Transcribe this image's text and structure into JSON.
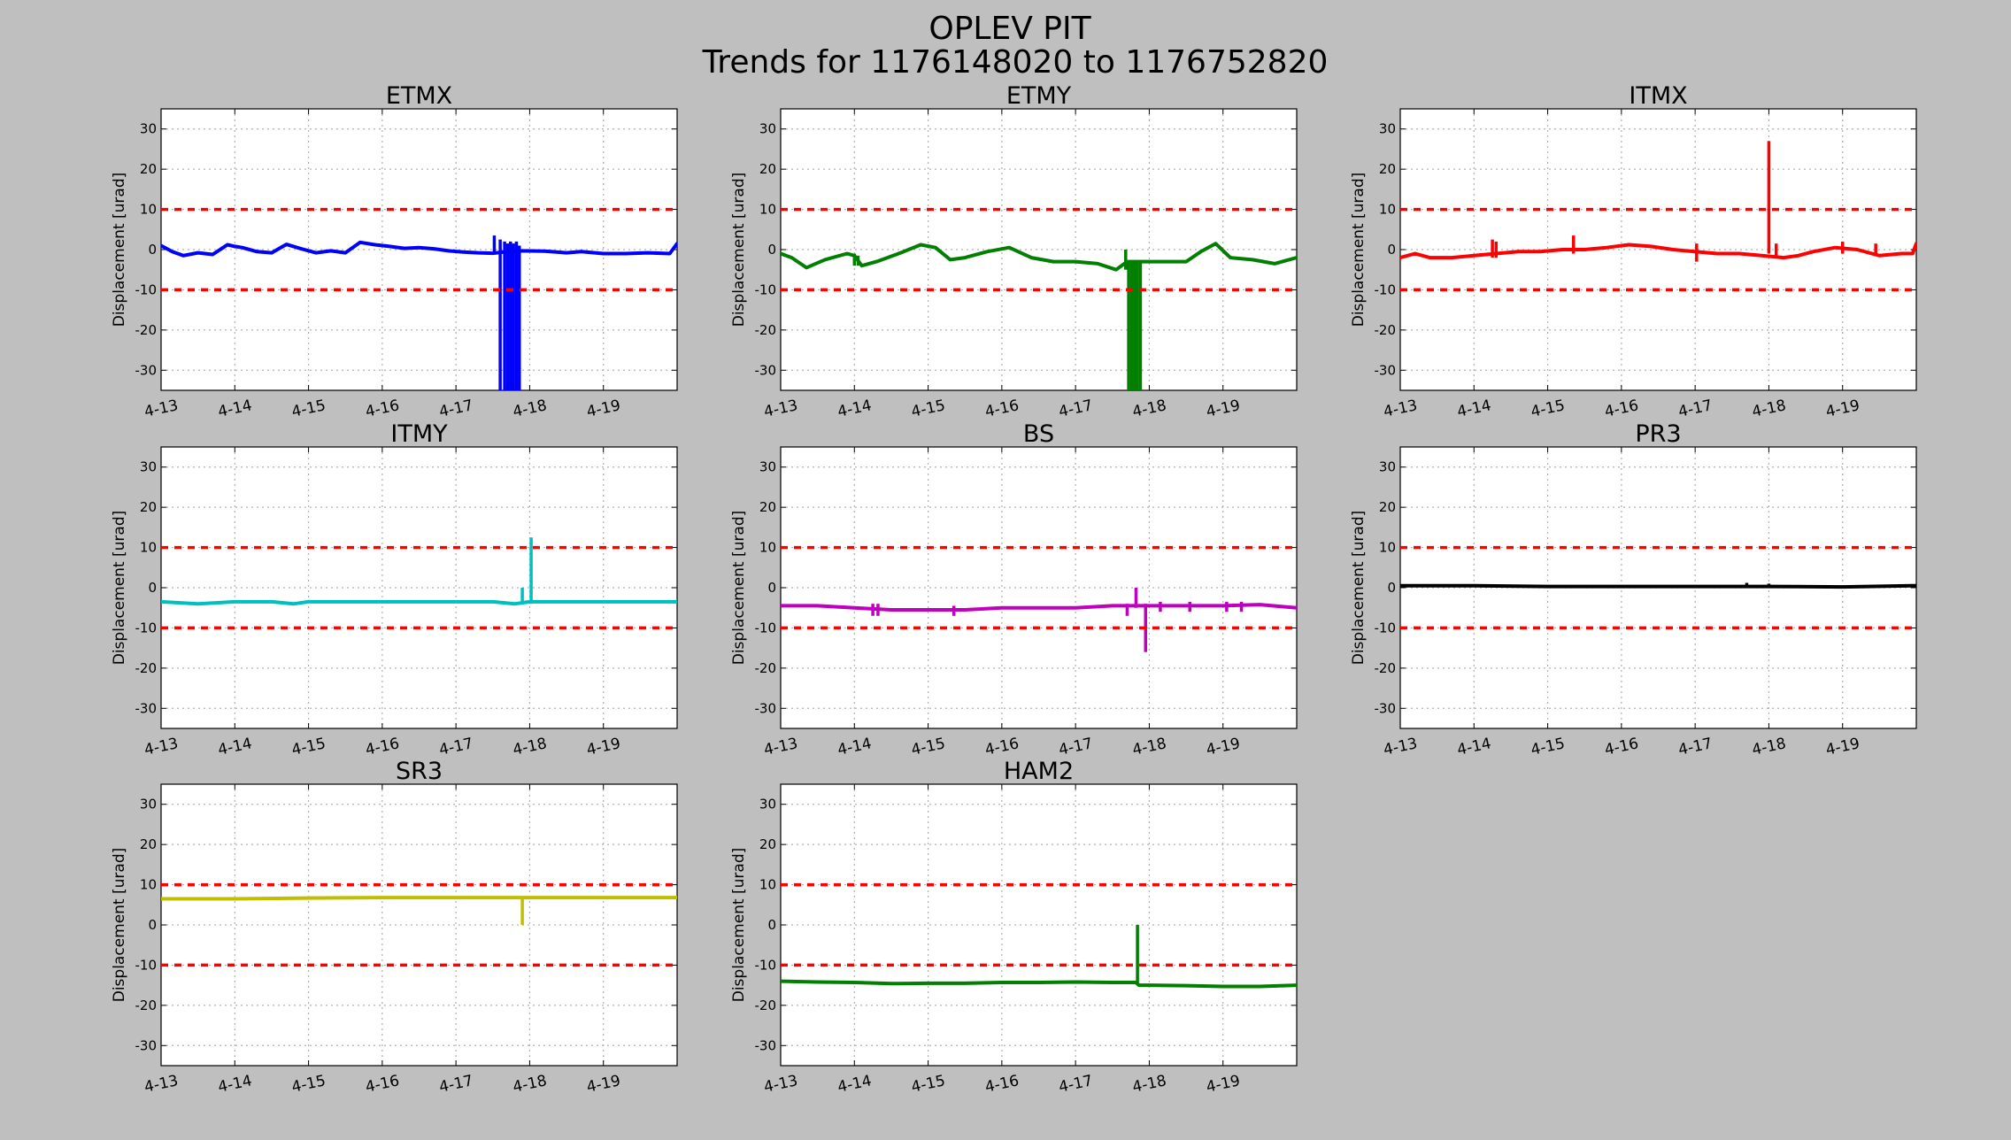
{
  "figure": {
    "title_line1": "OPLEV PIT",
    "title_line2": "Trends for 1176148020 to 1176752820"
  },
  "chart_data": [
    {
      "type": "line",
      "title": "ETMX",
      "ylabel": "Displacement [urad]",
      "xticks": [
        "4-13",
        "4-14",
        "4-15",
        "4-16",
        "4-17",
        "4-18",
        "4-19"
      ],
      "xlim": [
        0,
        7
      ],
      "ylim": [
        -35,
        35
      ],
      "yticks": [
        30,
        20,
        10,
        0,
        -10,
        -20,
        -30
      ],
      "grid": true,
      "thresholds": [
        10,
        -10
      ],
      "threshold_color": "#ff0000",
      "series": [
        {
          "color": "#0000ff",
          "x": [
            0,
            0.15,
            0.3,
            0.5,
            0.7,
            0.9,
            1.0,
            1.1,
            1.3,
            1.5,
            1.7,
            1.9,
            2.1,
            2.3,
            2.5,
            2.7,
            2.9,
            3.1,
            3.3,
            3.5,
            3.7,
            3.9,
            4.1,
            4.3,
            4.5,
            4.7,
            4.9,
            5.2,
            5.5,
            5.7,
            6.0,
            6.3,
            6.6,
            6.9,
            7.0
          ],
          "y": [
            1,
            -0.5,
            -1.5,
            -0.8,
            -1.2,
            1.2,
            0.8,
            0.5,
            -0.5,
            -0.8,
            1.3,
            0.2,
            -0.8,
            -0.3,
            -0.8,
            1.8,
            1.2,
            0.8,
            0.3,
            0.5,
            0.2,
            -0.3,
            -0.6,
            -0.8,
            -0.9,
            -0.5,
            -0.3,
            -0.4,
            -0.8,
            -0.5,
            -1.0,
            -1.0,
            -0.8,
            -1.0,
            1.5
          ]
        }
      ],
      "spikes": [
        {
          "x": 4.52,
          "ymin": -1,
          "ymax": 3.5
        },
        {
          "x": 4.6,
          "ymin": -35,
          "ymax": 2.5
        },
        {
          "x": 4.66,
          "ymin": -35,
          "ymax": 2
        },
        {
          "x": 4.7,
          "ymin": -35,
          "ymax": 1.5
        },
        {
          "x": 4.74,
          "ymin": -35,
          "ymax": 2
        },
        {
          "x": 4.78,
          "ymin": -35,
          "ymax": 1.5
        },
        {
          "x": 4.82,
          "ymin": -35,
          "ymax": 2
        },
        {
          "x": 4.86,
          "ymin": -35,
          "ymax": 1
        }
      ]
    },
    {
      "type": "line",
      "title": "ETMY",
      "ylabel": "Displacement [urad]",
      "xticks": [
        "4-13",
        "4-14",
        "4-15",
        "4-16",
        "4-17",
        "4-18",
        "4-19"
      ],
      "xlim": [
        0,
        7
      ],
      "ylim": [
        -35,
        35
      ],
      "yticks": [
        30,
        20,
        10,
        0,
        -10,
        -20,
        -30
      ],
      "grid": true,
      "thresholds": [
        10,
        -10
      ],
      "threshold_color": "#ff0000",
      "series": [
        {
          "color": "#007f00",
          "x": [
            0,
            0.15,
            0.35,
            0.6,
            0.9,
            1.0,
            1.1,
            1.3,
            1.6,
            1.9,
            2.1,
            2.3,
            2.5,
            2.8,
            3.1,
            3.4,
            3.7,
            4.0,
            4.3,
            4.55,
            4.7,
            4.9,
            5.2,
            5.5,
            5.7,
            5.9,
            6.1,
            6.4,
            6.7,
            7.0
          ],
          "y": [
            -1,
            -2,
            -4.5,
            -2.5,
            -1,
            -1.5,
            -4,
            -3,
            -1,
            1.2,
            0.5,
            -2.5,
            -2,
            -0.5,
            0.5,
            -2,
            -3,
            -3,
            -3.5,
            -5,
            -3,
            -3,
            -3,
            -3,
            -0.5,
            1.5,
            -2,
            -2.5,
            -3.5,
            -2
          ]
        }
      ],
      "spikes": [
        {
          "x": 4.68,
          "ymin": -5,
          "ymax": 0
        },
        {
          "x": 4.72,
          "ymin": -35,
          "ymax": -3
        },
        {
          "x": 4.76,
          "ymin": -35,
          "ymax": -3
        },
        {
          "x": 4.8,
          "ymin": -35,
          "ymax": -3
        },
        {
          "x": 4.84,
          "ymin": -35,
          "ymax": -3
        },
        {
          "x": 4.88,
          "ymin": -35,
          "ymax": -3
        },
        {
          "x": 1.0,
          "ymin": -4,
          "ymax": -1
        },
        {
          "x": 1.05,
          "ymin": -4,
          "ymax": -1.5
        }
      ]
    },
    {
      "type": "line",
      "title": "ITMX",
      "ylabel": "Displacement [urad]",
      "xticks": [
        "4-13",
        "4-14",
        "4-15",
        "4-16",
        "4-17",
        "4-18",
        "4-19"
      ],
      "xlim": [
        0,
        7
      ],
      "ylim": [
        -35,
        35
      ],
      "yticks": [
        30,
        20,
        10,
        0,
        -10,
        -20,
        -30
      ],
      "grid": true,
      "thresholds": [
        10,
        -10
      ],
      "threshold_color": "#ff0000",
      "series": [
        {
          "color": "#ff0000",
          "x": [
            0,
            0.2,
            0.4,
            0.7,
            1.0,
            1.3,
            1.6,
            1.9,
            2.2,
            2.5,
            2.8,
            3.1,
            3.4,
            3.7,
            4.0,
            4.3,
            4.6,
            4.9,
            5.2,
            5.4,
            5.6,
            5.9,
            6.2,
            6.5,
            6.8,
            6.95,
            7.0
          ],
          "y": [
            -2,
            -1,
            -2,
            -2,
            -1.5,
            -1,
            -0.5,
            -0.5,
            0,
            0,
            0.5,
            1.2,
            0.8,
            0,
            -0.5,
            -1,
            -1,
            -1.5,
            -2,
            -1.5,
            -0.5,
            0.5,
            0,
            -1.5,
            -1,
            -1,
            1.5
          ]
        }
      ],
      "spikes": [
        {
          "x": 4.02,
          "ymin": -3,
          "ymax": 1.5
        },
        {
          "x": 1.25,
          "ymin": -2,
          "ymax": 2.5
        },
        {
          "x": 1.3,
          "ymin": -2,
          "ymax": 2
        },
        {
          "x": 2.35,
          "ymin": -1,
          "ymax": 3.5
        },
        {
          "x": 5.0,
          "ymin": -1,
          "ymax": 27
        },
        {
          "x": 5.1,
          "ymin": -2,
          "ymax": 1.5
        },
        {
          "x": 6.0,
          "ymin": -1,
          "ymax": 2
        },
        {
          "x": 6.45,
          "ymin": -1.5,
          "ymax": 1.5
        }
      ]
    },
    {
      "type": "line",
      "title": "ITMY",
      "ylabel": "Displacement [urad]",
      "xticks": [
        "4-13",
        "4-14",
        "4-15",
        "4-16",
        "4-17",
        "4-18",
        "4-19"
      ],
      "xlim": [
        0,
        7
      ],
      "ylim": [
        -35,
        35
      ],
      "yticks": [
        30,
        20,
        10,
        0,
        -10,
        -20,
        -30
      ],
      "grid": true,
      "thresholds": [
        10,
        -10
      ],
      "threshold_color": "#ff0000",
      "series": [
        {
          "color": "#00bfbf",
          "x": [
            0,
            0.5,
            1.0,
            1.5,
            1.8,
            2.0,
            2.5,
            3.0,
            3.5,
            4.0,
            4.5,
            4.8,
            5.0,
            5.5,
            6.0,
            6.5,
            7.0
          ],
          "y": [
            -3.5,
            -4,
            -3.5,
            -3.5,
            -4,
            -3.5,
            -3.5,
            -3.5,
            -3.5,
            -3.5,
            -3.5,
            -4,
            -3.5,
            -3.5,
            -3.5,
            -3.5,
            -3.5
          ]
        }
      ],
      "spikes": [
        {
          "x": 4.9,
          "ymin": -4,
          "ymax": 0
        },
        {
          "x": 5.02,
          "ymin": -4,
          "ymax": 12.5
        }
      ]
    },
    {
      "type": "line",
      "title": "BS",
      "ylabel": "Displacement [urad]",
      "xticks": [
        "4-13",
        "4-14",
        "4-15",
        "4-16",
        "4-17",
        "4-18",
        "4-19"
      ],
      "xlim": [
        0,
        7
      ],
      "ylim": [
        -35,
        35
      ],
      "yticks": [
        30,
        20,
        10,
        0,
        -10,
        -20,
        -30
      ],
      "grid": true,
      "thresholds": [
        10,
        -10
      ],
      "threshold_color": "#ff0000",
      "series": [
        {
          "color": "#bf00bf",
          "x": [
            0,
            0.5,
            1.0,
            1.5,
            2.0,
            2.5,
            3.0,
            3.5,
            4.0,
            4.5,
            4.9,
            5.2,
            5.5,
            6.0,
            6.5,
            7.0
          ],
          "y": [
            -4.5,
            -4.5,
            -5,
            -5.5,
            -5.5,
            -5.5,
            -5,
            -5,
            -5,
            -4.5,
            -4.5,
            -4.5,
            -4.5,
            -4.5,
            -4.2,
            -5
          ]
        }
      ],
      "spikes": [
        {
          "x": 1.25,
          "ymin": -7,
          "ymax": -4
        },
        {
          "x": 1.32,
          "ymin": -7,
          "ymax": -4
        },
        {
          "x": 2.35,
          "ymin": -7,
          "ymax": -4.5
        },
        {
          "x": 4.7,
          "ymin": -7,
          "ymax": -4
        },
        {
          "x": 4.82,
          "ymin": -5,
          "ymax": 0
        },
        {
          "x": 4.95,
          "ymin": -16,
          "ymax": -4
        },
        {
          "x": 5.15,
          "ymin": -6,
          "ymax": -3.5
        },
        {
          "x": 5.55,
          "ymin": -6,
          "ymax": -3.5
        },
        {
          "x": 6.05,
          "ymin": -6,
          "ymax": -3.5
        },
        {
          "x": 6.25,
          "ymin": -6,
          "ymax": -3.5
        }
      ]
    },
    {
      "type": "line",
      "title": "PR3",
      "ylabel": "Displacement [urad]",
      "xticks": [
        "4-13",
        "4-14",
        "4-15",
        "4-16",
        "4-17",
        "4-18",
        "4-19"
      ],
      "xlim": [
        0,
        7
      ],
      "ylim": [
        -35,
        35
      ],
      "yticks": [
        30,
        20,
        10,
        0,
        -10,
        -20,
        -30
      ],
      "grid": true,
      "thresholds": [
        10,
        -10
      ],
      "threshold_color": "#ff0000",
      "series": [
        {
          "color": "#000000",
          "x": [
            0,
            1.0,
            2.0,
            3.0,
            4.0,
            5.0,
            6.0,
            7.0
          ],
          "y": [
            0.5,
            0.5,
            0.3,
            0.3,
            0.3,
            0.3,
            0.2,
            0.5
          ]
        }
      ],
      "spikes": [
        {
          "x": 4.7,
          "ymin": 0,
          "ymax": 1.2
        },
        {
          "x": 5.0,
          "ymin": 0,
          "ymax": 1
        }
      ]
    },
    {
      "type": "line",
      "title": "SR3",
      "ylabel": "Displacement [urad]",
      "xticks": [
        "4-13",
        "4-14",
        "4-15",
        "4-16",
        "4-17",
        "4-18",
        "4-19"
      ],
      "xlim": [
        0,
        7
      ],
      "ylim": [
        -35,
        35
      ],
      "yticks": [
        30,
        20,
        10,
        0,
        -10,
        -20,
        -30
      ],
      "grid": true,
      "thresholds": [
        10,
        -10
      ],
      "threshold_color": "#ff0000",
      "series": [
        {
          "color": "#bfbf00",
          "x": [
            0,
            1.0,
            2.0,
            3.0,
            4.0,
            5.0,
            6.0,
            7.0
          ],
          "y": [
            6.5,
            6.5,
            6.7,
            6.8,
            6.8,
            6.8,
            6.8,
            6.8
          ]
        }
      ],
      "spikes": [
        {
          "x": 4.9,
          "ymin": 0,
          "ymax": 6.8
        }
      ]
    },
    {
      "type": "line",
      "title": "HAM2",
      "ylabel": "Displacement [urad]",
      "xticks": [
        "4-13",
        "4-14",
        "4-15",
        "4-16",
        "4-17",
        "4-18",
        "4-19"
      ],
      "xlim": [
        0,
        7
      ],
      "ylim": [
        -35,
        35
      ],
      "yticks": [
        30,
        20,
        10,
        0,
        -10,
        -20,
        -30
      ],
      "grid": true,
      "thresholds": [
        10,
        -10
      ],
      "threshold_color": "#ff0000",
      "series": [
        {
          "color": "#007f00",
          "x": [
            0,
            0.5,
            1.0,
            1.5,
            2.0,
            2.5,
            3.0,
            3.5,
            4.0,
            4.5,
            4.82,
            4.86,
            5.0,
            5.5,
            6.0,
            6.5,
            7.0
          ],
          "y": [
            -14,
            -14.2,
            -14.3,
            -14.6,
            -14.5,
            -14.5,
            -14.3,
            -14.3,
            -14.2,
            -14.3,
            -14.3,
            -15,
            -15,
            -15.1,
            -15.3,
            -15.3,
            -15
          ]
        }
      ],
      "spikes": [
        {
          "x": 4.84,
          "ymin": -15,
          "ymax": 0
        }
      ]
    }
  ]
}
